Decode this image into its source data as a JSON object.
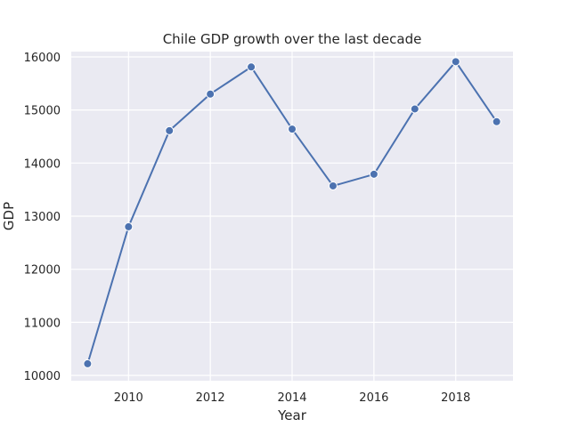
{
  "chart_data": {
    "type": "line",
    "title": "Chile GDP growth over the last decade",
    "xlabel": "Year",
    "ylabel": "GDP",
    "xlim": [
      2008.6,
      2019.4
    ],
    "ylim": [
      9900,
      16100
    ],
    "xticks": [
      2010,
      2012,
      2014,
      2016,
      2018
    ],
    "yticks": [
      10000,
      11000,
      12000,
      13000,
      14000,
      15000,
      16000
    ],
    "grid": true,
    "series": [
      {
        "x": [
          2009,
          2010,
          2011,
          2012,
          2013,
          2014,
          2015,
          2016,
          2017,
          2018,
          2019
        ],
        "y": [
          10220,
          12800,
          14610,
          15300,
          15810,
          14640,
          13570,
          13790,
          15020,
          15910,
          14780
        ]
      }
    ],
    "colors": {
      "series": "#4c72b0",
      "plot_background": "#eaeaf2",
      "grid": "#ffffff"
    }
  }
}
